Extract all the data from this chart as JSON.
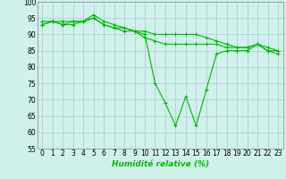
{
  "xlabel": "Humidité relative (%)",
  "background_color": "#cff0eb",
  "grid_color": "#aacccc",
  "line_color": "#00bb00",
  "ylim": [
    55,
    100
  ],
  "xlim": [
    -0.5,
    23.5
  ],
  "yticks": [
    55,
    60,
    65,
    70,
    75,
    80,
    85,
    90,
    95,
    100
  ],
  "xticks": [
    0,
    1,
    2,
    3,
    4,
    5,
    6,
    7,
    8,
    9,
    10,
    11,
    12,
    13,
    14,
    15,
    16,
    17,
    18,
    19,
    20,
    21,
    22,
    23
  ],
  "series": [
    [
      94,
      94,
      94,
      94,
      94,
      96,
      94,
      93,
      92,
      91,
      90,
      75,
      69,
      62,
      71,
      62,
      73,
      84,
      85,
      85,
      85,
      87,
      85,
      85
    ],
    [
      93,
      94,
      93,
      93,
      94,
      95,
      93,
      92,
      91,
      91,
      89,
      88,
      87,
      87,
      87,
      87,
      87,
      87,
      86,
      86,
      86,
      87,
      85,
      84
    ],
    [
      93,
      94,
      93,
      94,
      94,
      95,
      93,
      92,
      92,
      91,
      91,
      90,
      90,
      90,
      90,
      90,
      89,
      88,
      87,
      86,
      86,
      87,
      86,
      85
    ]
  ]
}
